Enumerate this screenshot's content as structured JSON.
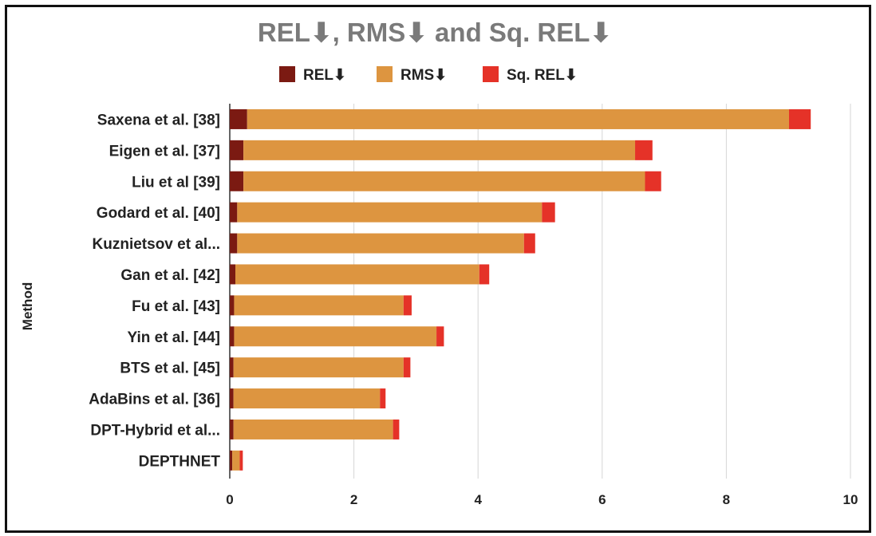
{
  "chart_data": {
    "type": "bar",
    "orientation": "horizontal",
    "stacked": true,
    "title": "REL⬇, RMS⬇ and Sq. REL⬇",
    "xlabel": "",
    "ylabel": "Method",
    "xlim": [
      0,
      10
    ],
    "xticks": [
      0,
      2,
      4,
      6,
      8,
      10
    ],
    "grid": true,
    "legend_position": "top",
    "categories": [
      "Saxena et al. [38]",
      "Eigen et al. [37]",
      "Liu et al [39]",
      "Godard et al. [40]",
      "Kuznietsov et al...",
      "Gan et al. [42]",
      "Fu et al. [43]",
      "Yin et al. [44]",
      "BTS et al. [45]",
      "AdaBins et al. [36]",
      "DPT-Hybrid et al...",
      "DEPTHNET"
    ],
    "series": [
      {
        "name": "REL⬇",
        "color": "#7b1a12",
        "values": [
          0.28,
          0.22,
          0.22,
          0.12,
          0.12,
          0.09,
          0.07,
          0.07,
          0.06,
          0.06,
          0.06,
          0.04
        ]
      },
      {
        "name": "RMS⬇",
        "color": "#dd9540",
        "values": [
          8.73,
          6.31,
          6.47,
          4.91,
          4.62,
          3.93,
          2.73,
          3.26,
          2.74,
          2.36,
          2.57,
          0.12
        ]
      },
      {
        "name": "Sq. REL⬇",
        "color": "#e53228",
        "values": [
          0.35,
          0.28,
          0.26,
          0.21,
          0.18,
          0.16,
          0.13,
          0.12,
          0.11,
          0.09,
          0.1,
          0.05
        ]
      }
    ]
  }
}
